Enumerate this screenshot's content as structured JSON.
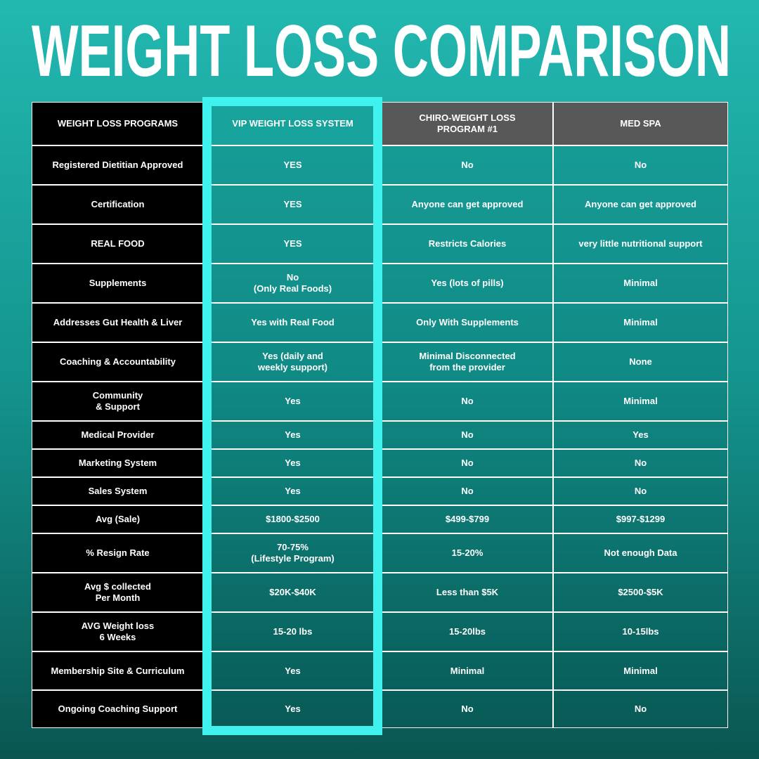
{
  "title": "WEIGHT LOSS COMPARISON",
  "table": {
    "header": [
      "WEIGHT LOSS PROGRAMS",
      "VIP WEIGHT LOSS SYSTEM",
      "CHIRO-WEIGHT LOSS\nPROGRAM #1",
      "MED SPA"
    ],
    "rows": [
      [
        "Registered Dietitian Approved",
        "YES",
        "No",
        "No"
      ],
      [
        "Certification",
        "YES",
        "Anyone can get approved",
        "Anyone can get approved"
      ],
      [
        "REAL FOOD",
        "YES",
        "Restricts Calories",
        "very little nutritional support"
      ],
      [
        "Supplements",
        "No\n(Only Real Foods)",
        "Yes (lots of pills)",
        "Minimal"
      ],
      [
        "Addresses Gut Health & Liver",
        "Yes with Real Food",
        "Only With Supplements",
        "Minimal"
      ],
      [
        "Coaching & Accountability",
        "Yes (daily and\nweekly support)",
        "Minimal Disconnected\nfrom the provider",
        "None"
      ],
      [
        "Community\n& Support",
        "Yes",
        "No",
        "Minimal"
      ],
      [
        "Medical Provider",
        "Yes",
        "No",
        "Yes"
      ],
      [
        "Marketing System",
        "Yes",
        "No",
        "No"
      ],
      [
        "Sales System",
        "Yes",
        "No",
        "No"
      ],
      [
        "Avg (Sale)",
        "$1800-$2500",
        "$499-$799",
        "$997-$1299"
      ],
      [
        "% Resign Rate",
        "70-75%\n(Lifestyle Program)",
        "15-20%",
        "Not enough Data"
      ],
      [
        "Avg $ collected\nPer Month",
        "$20K-$40K",
        "Less than $5K",
        "$2500-$5K"
      ],
      [
        "AVG Weight loss\n6 Weeks",
        "15-20 lbs",
        "15-20lbs",
        "10-15lbs"
      ],
      [
        "Membership Site & Curriculum",
        "Yes",
        "Minimal",
        "Minimal"
      ],
      [
        "Ongoing Coaching Support",
        "Yes",
        "No",
        "No"
      ]
    ]
  }
}
